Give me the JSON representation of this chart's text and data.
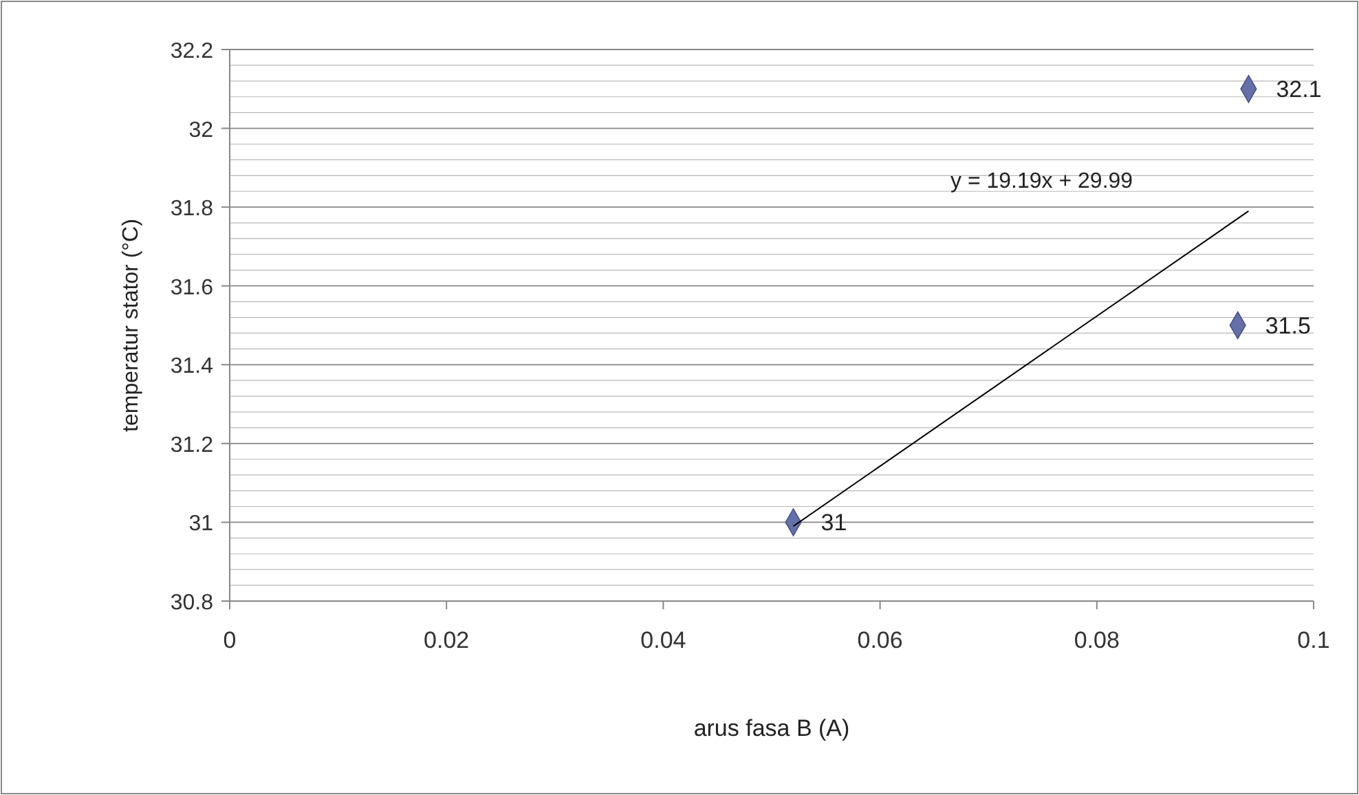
{
  "chart_data": {
    "type": "scatter",
    "xlabel": "arus fasa B (A)",
    "ylabel": "temperatur stator (°C)",
    "annotations": [
      "y = 19.19x + 29.99"
    ],
    "series": [
      {
        "color": "#6670a8",
        "x": [
          0.052,
          0.094,
          0.093
        ],
        "values": [
          31,
          32.1,
          31.5
        ],
        "marker": "diamond",
        "data_labels": true
      },
      {
        "type": "line",
        "color": "#000000",
        "x": [
          0.052,
          0.094
        ],
        "values": [
          30.99,
          31.79
        ],
        "marker": "none"
      }
    ],
    "xlim": [
      0,
      0.1
    ],
    "ylim": [
      30.8,
      32.2
    ],
    "xticks": [
      0,
      0.02,
      0.04,
      0.06,
      0.08,
      0.1
    ],
    "yticks": [
      30.8,
      {
        "value": 30.84,
        "label": null
      },
      {
        "value": 30.88,
        "label": null
      },
      {
        "value": 30.92,
        "label": null
      },
      {
        "value": 30.96,
        "label": null
      },
      31,
      {
        "value": 31.04,
        "label": null
      },
      {
        "value": 31.08,
        "label": null
      },
      {
        "value": 31.12,
        "label": null
      },
      {
        "value": 31.16,
        "label": null
      },
      31.2,
      {
        "value": 31.24,
        "label": null
      },
      {
        "value": 31.28,
        "label": null
      },
      {
        "value": 31.32,
        "label": null
      },
      {
        "value": 31.36,
        "label": null
      },
      31.4,
      {
        "value": 31.44,
        "label": null
      },
      {
        "value": 31.48,
        "label": null
      },
      {
        "value": 31.52,
        "label": null
      },
      {
        "value": 31.56,
        "label": null
      },
      31.6,
      {
        "value": 31.64,
        "label": null
      },
      {
        "value": 31.68,
        "label": null
      },
      {
        "value": 31.72,
        "label": null
      },
      {
        "value": 31.76,
        "label": null
      },
      31.8,
      {
        "value": 31.84,
        "label": null
      },
      {
        "value": 31.88,
        "label": null
      },
      {
        "value": 31.92,
        "label": null
      },
      {
        "value": 31.96,
        "label": null
      },
      32,
      {
        "value": 32.04,
        "label": null
      },
      {
        "value": 32.08,
        "label": null
      },
      {
        "value": 32.12,
        "label": null
      },
      {
        "value": 32.16,
        "label": null
      },
      32.2
    ],
    "grid": "y"
  }
}
